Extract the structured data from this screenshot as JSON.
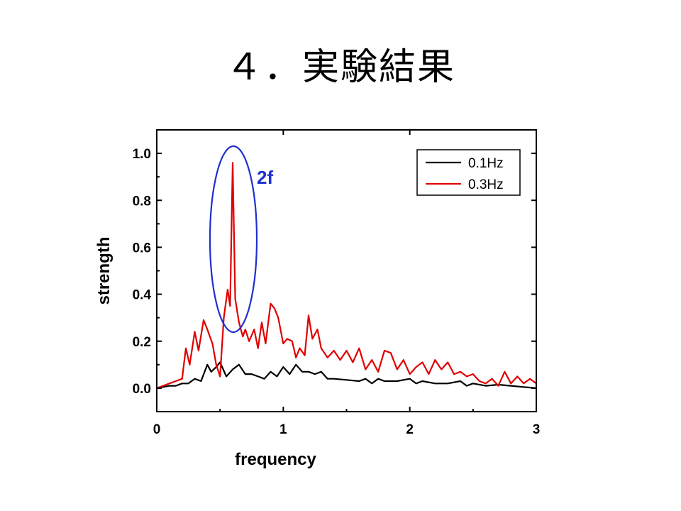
{
  "slide": {
    "title": "４．実験結果"
  },
  "chart_data": {
    "type": "line",
    "xlabel": "frequency",
    "ylabel": "strength",
    "xlim": [
      0,
      3
    ],
    "ylim": [
      -0.1,
      1.1
    ],
    "xticks": [
      "0",
      "1",
      "2",
      "3"
    ],
    "yticks": [
      "0.0",
      "0.2",
      "0.4",
      "0.6",
      "0.8",
      "1.0"
    ],
    "legend_position": "top-right",
    "annotation": {
      "text": "2f",
      "color": "#1f2fd0"
    },
    "series": [
      {
        "name": "0.1Hz",
        "color": "#000000",
        "x": [
          0,
          0.05,
          0.1,
          0.15,
          0.2,
          0.25,
          0.3,
          0.35,
          0.4,
          0.43,
          0.47,
          0.5,
          0.55,
          0.6,
          0.65,
          0.7,
          0.75,
          0.8,
          0.85,
          0.9,
          0.95,
          1.0,
          1.05,
          1.1,
          1.15,
          1.2,
          1.25,
          1.3,
          1.35,
          1.4,
          1.5,
          1.6,
          1.65,
          1.7,
          1.75,
          1.8,
          1.9,
          2.0,
          2.05,
          2.1,
          2.2,
          2.3,
          2.4,
          2.45,
          2.5,
          2.6,
          2.7,
          2.8,
          2.9,
          3.0
        ],
        "y": [
          0,
          0.005,
          0.01,
          0.01,
          0.02,
          0.02,
          0.04,
          0.03,
          0.1,
          0.07,
          0.09,
          0.11,
          0.05,
          0.08,
          0.1,
          0.06,
          0.06,
          0.05,
          0.04,
          0.07,
          0.05,
          0.09,
          0.06,
          0.1,
          0.07,
          0.07,
          0.06,
          0.07,
          0.04,
          0.04,
          0.035,
          0.03,
          0.04,
          0.02,
          0.04,
          0.03,
          0.03,
          0.04,
          0.02,
          0.03,
          0.02,
          0.02,
          0.03,
          0.01,
          0.02,
          0.01,
          0.015,
          0.01,
          0.005,
          0.0
        ]
      },
      {
        "name": "0.3Hz",
        "color": "#e00000",
        "x": [
          0,
          0.05,
          0.1,
          0.15,
          0.2,
          0.23,
          0.26,
          0.3,
          0.33,
          0.37,
          0.4,
          0.44,
          0.47,
          0.5,
          0.53,
          0.56,
          0.58,
          0.6,
          0.62,
          0.65,
          0.68,
          0.7,
          0.73,
          0.77,
          0.8,
          0.83,
          0.86,
          0.9,
          0.93,
          0.96,
          1.0,
          1.03,
          1.07,
          1.1,
          1.13,
          1.17,
          1.2,
          1.23,
          1.27,
          1.3,
          1.35,
          1.4,
          1.45,
          1.5,
          1.55,
          1.6,
          1.65,
          1.7,
          1.75,
          1.8,
          1.85,
          1.9,
          1.95,
          2.0,
          2.05,
          2.1,
          2.15,
          2.2,
          2.25,
          2.3,
          2.35,
          2.4,
          2.45,
          2.5,
          2.55,
          2.6,
          2.65,
          2.7,
          2.75,
          2.8,
          2.85,
          2.9,
          2.95,
          3.0
        ],
        "y": [
          0,
          0.01,
          0.02,
          0.03,
          0.04,
          0.17,
          0.1,
          0.24,
          0.16,
          0.29,
          0.25,
          0.19,
          0.1,
          0.05,
          0.3,
          0.42,
          0.35,
          0.96,
          0.38,
          0.28,
          0.22,
          0.25,
          0.2,
          0.25,
          0.17,
          0.28,
          0.19,
          0.36,
          0.34,
          0.3,
          0.19,
          0.21,
          0.2,
          0.13,
          0.17,
          0.14,
          0.31,
          0.21,
          0.25,
          0.17,
          0.13,
          0.16,
          0.12,
          0.16,
          0.11,
          0.17,
          0.08,
          0.12,
          0.07,
          0.16,
          0.15,
          0.08,
          0.12,
          0.06,
          0.09,
          0.11,
          0.06,
          0.12,
          0.08,
          0.11,
          0.06,
          0.07,
          0.05,
          0.06,
          0.03,
          0.02,
          0.04,
          0.01,
          0.07,
          0.02,
          0.05,
          0.02,
          0.04,
          0.02
        ]
      }
    ]
  }
}
